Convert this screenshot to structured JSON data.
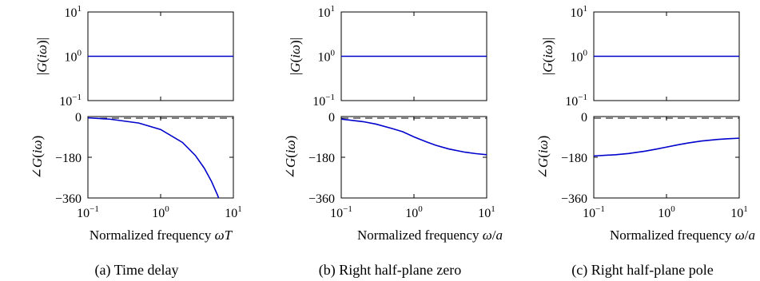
{
  "chart_data": [
    {
      "type": "line",
      "panel": "a",
      "caption": "(a) Time delay",
      "xlabel": "Normalized frequency ωT",
      "xscale": "log",
      "xlim": [
        0.1,
        10
      ],
      "xticks": [
        0.1,
        1,
        10
      ],
      "magnitude": {
        "ylabel": "|G(iω)|",
        "yscale": "log",
        "ylim": [
          0.1,
          10
        ],
        "yticks": [
          0.1,
          1,
          10
        ],
        "series": [
          {
            "x": [
              0.1,
              10
            ],
            "y": [
              1,
              1
            ]
          }
        ]
      },
      "phase": {
        "ylabel": "∠G(iω)",
        "ylim": [
          -360,
          0
        ],
        "yticks": [
          0,
          -180,
          -360
        ],
        "reference_dashed": 0,
        "series": [
          {
            "x": [
              0.1,
              0.2,
              0.5,
              1,
              2,
              3,
              4,
              5,
              6,
              6.28
            ],
            "y": [
              -5.7,
              -11.5,
              -28.6,
              -57.3,
              -114.6,
              -171.9,
              -229.2,
              -286.5,
              -343.8,
              -360
            ]
          }
        ]
      }
    },
    {
      "type": "line",
      "panel": "b",
      "caption": "(b) Right half-plane zero",
      "xlabel": "Normalized frequency ω/a",
      "xscale": "log",
      "xlim": [
        0.1,
        10
      ],
      "xticks": [
        0.1,
        1,
        10
      ],
      "magnitude": {
        "ylabel": "|G(iω)|",
        "yscale": "log",
        "ylim": [
          0.1,
          10
        ],
        "yticks": [
          0.1,
          1,
          10
        ],
        "series": [
          {
            "x": [
              0.1,
              10
            ],
            "y": [
              1,
              1
            ]
          }
        ]
      },
      "phase": {
        "ylabel": "∠G(iω)",
        "ylim": [
          -360,
          0
        ],
        "yticks": [
          0,
          -180,
          -360
        ],
        "reference_dashed": 0,
        "series": [
          {
            "x": [
              0.1,
              0.2,
              0.3,
              0.5,
              0.7,
              1,
              1.5,
              2,
              3,
              5,
              7,
              10
            ],
            "y": [
              -11.4,
              -22.6,
              -33.4,
              -53.1,
              -67.1,
              -90,
              -112.6,
              -126.9,
              -143.1,
              -157.4,
              -163.7,
              -168.6
            ]
          }
        ]
      }
    },
    {
      "type": "line",
      "panel": "c",
      "caption": "(c) Right half-plane pole",
      "xlabel": "Normalized frequency ω/a",
      "xscale": "log",
      "xlim": [
        0.1,
        10
      ],
      "xticks": [
        0.1,
        1,
        10
      ],
      "magnitude": {
        "ylabel": "|G(iω)|",
        "yscale": "log",
        "ylim": [
          0.1,
          10
        ],
        "yticks": [
          0.1,
          1,
          10
        ],
        "series": [
          {
            "x": [
              0.1,
              10
            ],
            "y": [
              1,
              1
            ]
          }
        ]
      },
      "phase": {
        "ylabel": "∠G(iω)",
        "ylim": [
          -360,
          0
        ],
        "yticks": [
          0,
          -180,
          -360
        ],
        "reference_dashed": 0,
        "series": [
          {
            "x": [
              0.1,
              0.2,
              0.3,
              0.5,
              0.7,
              1,
              1.5,
              2,
              3,
              5,
              7,
              10
            ],
            "y": [
              -174.3,
              -168.7,
              -163.3,
              -153.4,
              -145.0,
              -135,
              -123.7,
              -116.6,
              -108.4,
              -101.3,
              -98.1,
              -95.7
            ]
          }
        ]
      }
    }
  ]
}
